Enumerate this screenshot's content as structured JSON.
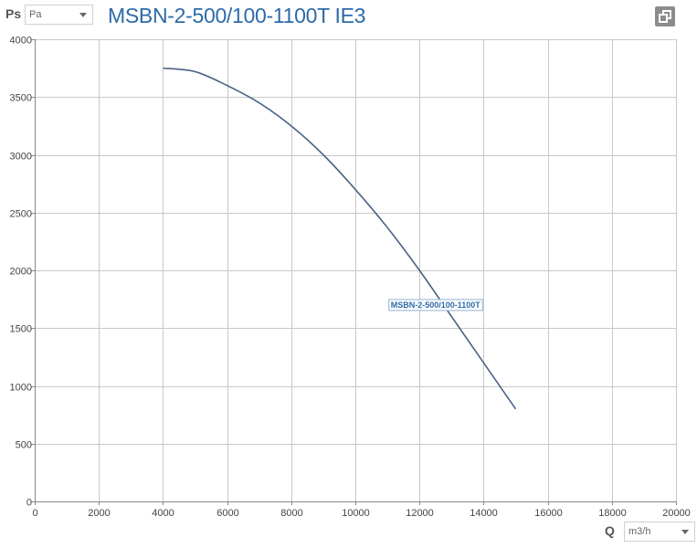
{
  "header": {
    "y_axis_symbol": "Ps",
    "y_unit_selected": "Pa",
    "title": "MSBN-2-500/100-1100T IE3",
    "copy_icon": "copy-icon"
  },
  "footer": {
    "x_axis_symbol": "Q",
    "x_unit_selected": "m3/h"
  },
  "chart_data": {
    "type": "line",
    "title": "MSBN-2-500/100-1100T IE3",
    "xlabel": "Q",
    "ylabel": "Ps",
    "xlim": [
      0,
      20000
    ],
    "ylim": [
      0,
      4000
    ],
    "x_ticks": [
      0,
      2000,
      4000,
      6000,
      8000,
      10000,
      12000,
      14000,
      16000,
      18000,
      20000
    ],
    "y_ticks": [
      0,
      500,
      1000,
      1500,
      2000,
      2500,
      3000,
      3500,
      4000
    ],
    "grid": true,
    "series": [
      {
        "name": "MSBN-2-500/100-1100T",
        "color": "#4a6285",
        "x": [
          4000,
          5000,
          6000,
          7000,
          8000,
          9000,
          10000,
          11000,
          12000,
          13000,
          14000,
          15000
        ],
        "y": [
          3750,
          3720,
          3600,
          3450,
          3250,
          3000,
          2700,
          2370,
          2000,
          1600,
          1200,
          800
        ]
      }
    ]
  }
}
